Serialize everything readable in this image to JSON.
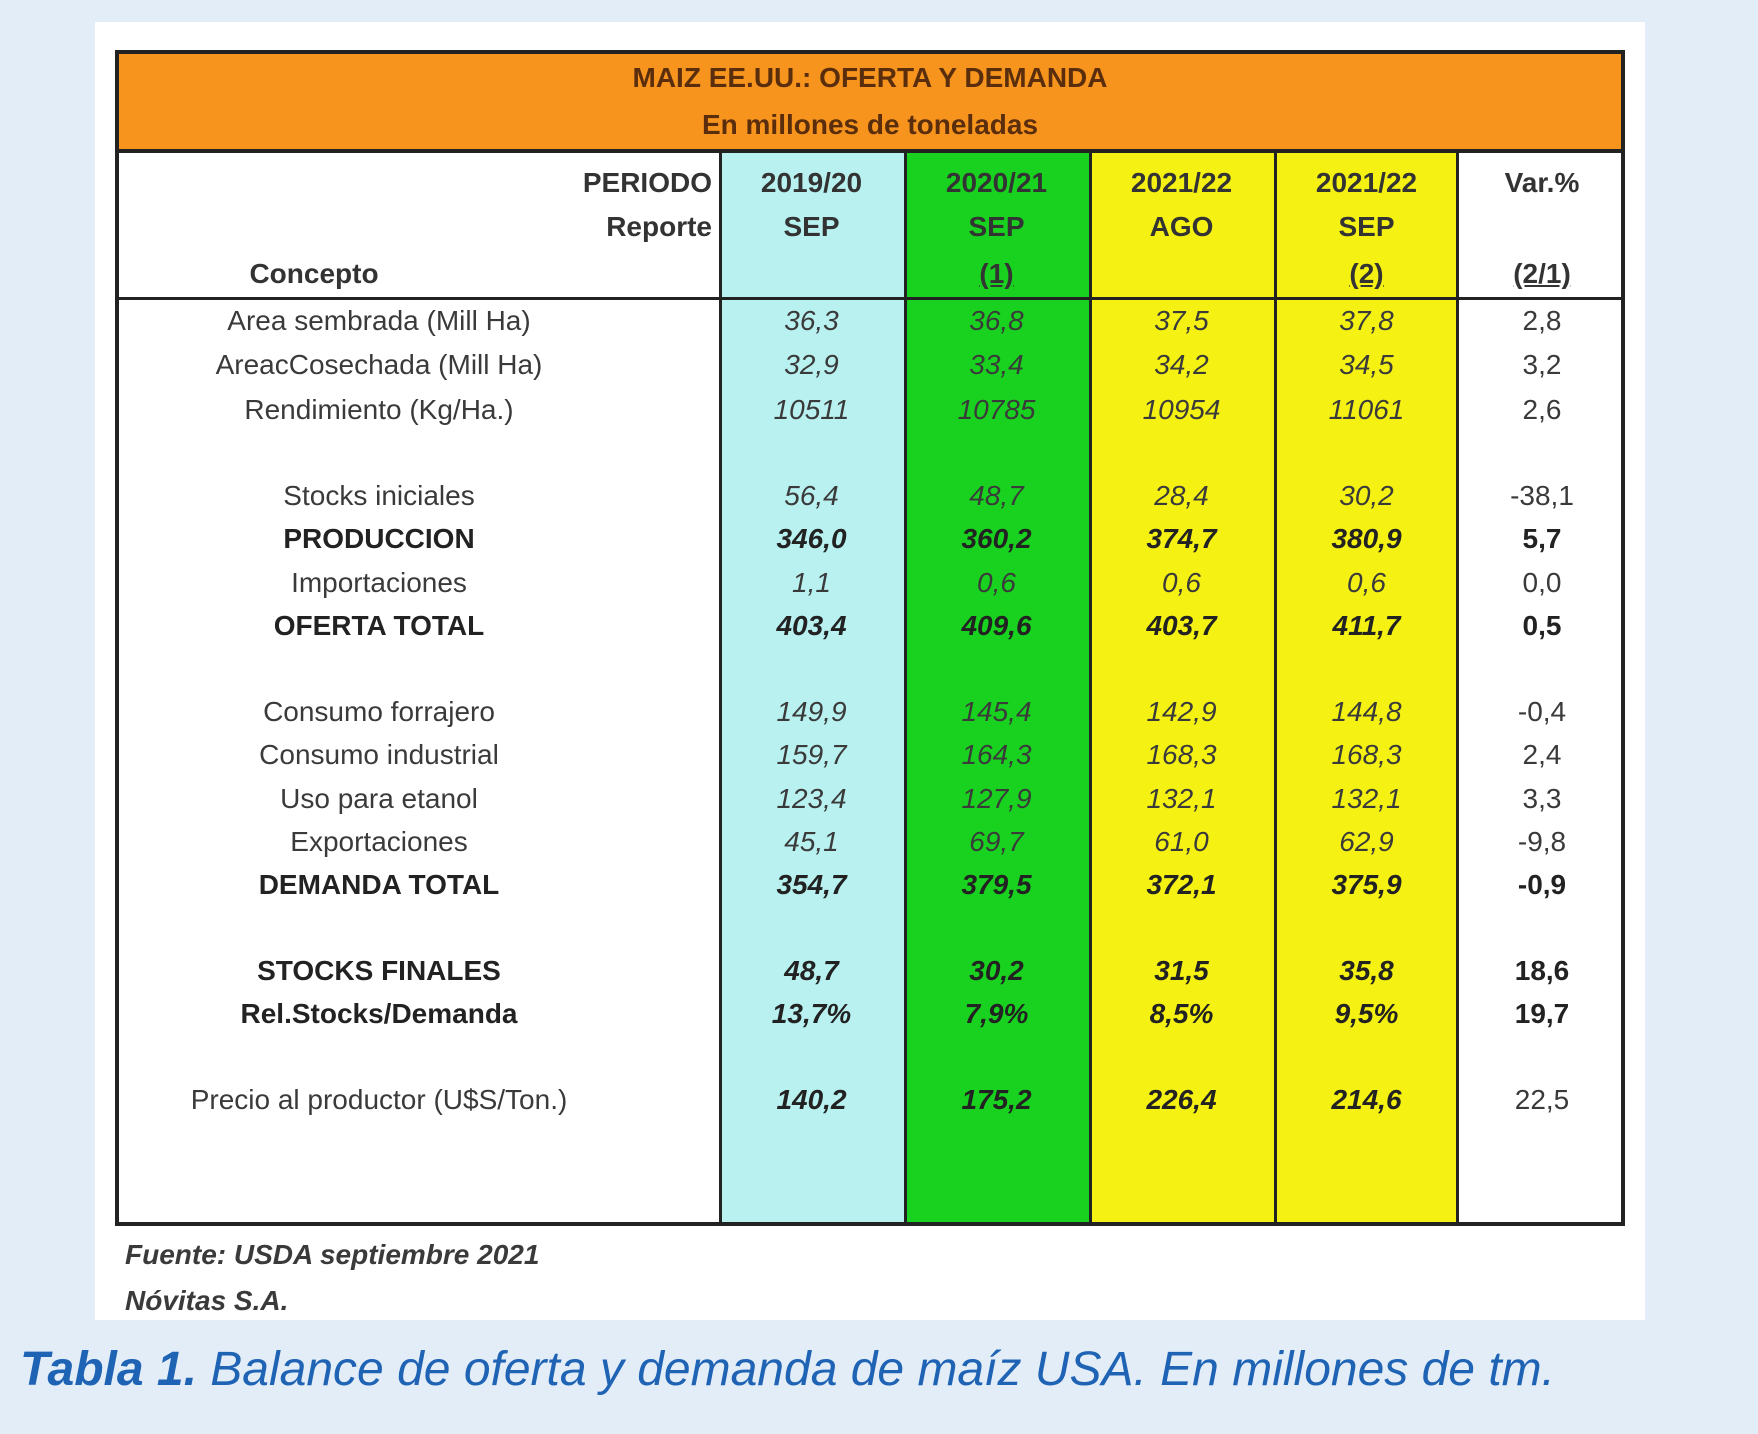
{
  "table": {
    "title": "MAIZ EE.UU.: OFERTA Y DEMANDA",
    "subtitle": "En millones de toneladas",
    "header": {
      "periodo_label": "PERIODO",
      "reporte_label": "Reporte",
      "concepto_label": "Concepto",
      "columns": [
        {
          "period": "2019/20",
          "report": "SEP",
          "ref": ""
        },
        {
          "period": "2020/21",
          "report": "SEP",
          "ref": "(1)"
        },
        {
          "period": "2021/22",
          "report": "AGO",
          "ref": ""
        },
        {
          "period": "2021/22",
          "report": "SEP",
          "ref": "(2)"
        },
        {
          "period": "Var.%",
          "report": "",
          "ref": "(2/1)"
        }
      ]
    },
    "rows": [
      {
        "label": "Area sembrada (Mill Ha)",
        "values": [
          "36,3",
          "36,8",
          "37,5",
          "37,8",
          "2,8"
        ]
      },
      {
        "label": "AreacCosechada (Mill Ha)",
        "values": [
          "32,9",
          "33,4",
          "34,2",
          "34,5",
          "3,2"
        ]
      },
      {
        "label": "Rendimiento (Kg/Ha.)",
        "values": [
          "10511",
          "10785",
          "10954",
          "11061",
          "2,6"
        ]
      },
      {
        "label": "Stocks iniciales",
        "values": [
          "56,4",
          "48,7",
          "28,4",
          "30,2",
          "-38,1"
        ]
      },
      {
        "label": "PRODUCCION",
        "values": [
          "346,0",
          "360,2",
          "374,7",
          "380,9",
          "5,7"
        ]
      },
      {
        "label": "Importaciones",
        "values": [
          "1,1",
          "0,6",
          "0,6",
          "0,6",
          "0,0"
        ]
      },
      {
        "label": "OFERTA TOTAL",
        "values": [
          "403,4",
          "409,6",
          "403,7",
          "411,7",
          "0,5"
        ]
      },
      {
        "label": "Consumo forrajero",
        "values": [
          "149,9",
          "145,4",
          "142,9",
          "144,8",
          "-0,4"
        ]
      },
      {
        "label": "Consumo industrial",
        "values": [
          "159,7",
          "164,3",
          "168,3",
          "168,3",
          "2,4"
        ]
      },
      {
        "label": "Uso para etanol",
        "values": [
          "123,4",
          "127,9",
          "132,1",
          "132,1",
          "3,3"
        ]
      },
      {
        "label": "Exportaciones",
        "values": [
          "45,1",
          "69,7",
          "61,0",
          "62,9",
          "-9,8"
        ]
      },
      {
        "label": "DEMANDA TOTAL",
        "values": [
          "354,7",
          "379,5",
          "372,1",
          "375,9",
          "-0,9"
        ]
      },
      {
        "label": "STOCKS FINALES",
        "values": [
          "48,7",
          "30,2",
          "31,5",
          "35,8",
          "18,6"
        ]
      },
      {
        "label": "Rel.Stocks/Demanda",
        "values": [
          "13,7%",
          "7,9%",
          "8,5%",
          "9,5%",
          "19,7"
        ]
      },
      {
        "label": "Precio al productor (U$S/Ton.)",
        "values": [
          "140,2",
          "175,2",
          "226,4",
          "214,6",
          "22,5"
        ]
      }
    ]
  },
  "footnotes": {
    "source": "Fuente: USDA septiembre 2021",
    "author": "Nóvitas S.A."
  },
  "caption": {
    "label": "Tabla 1.",
    "text": " Balance de oferta y demanda de maíz USA. En millones de tm."
  }
}
